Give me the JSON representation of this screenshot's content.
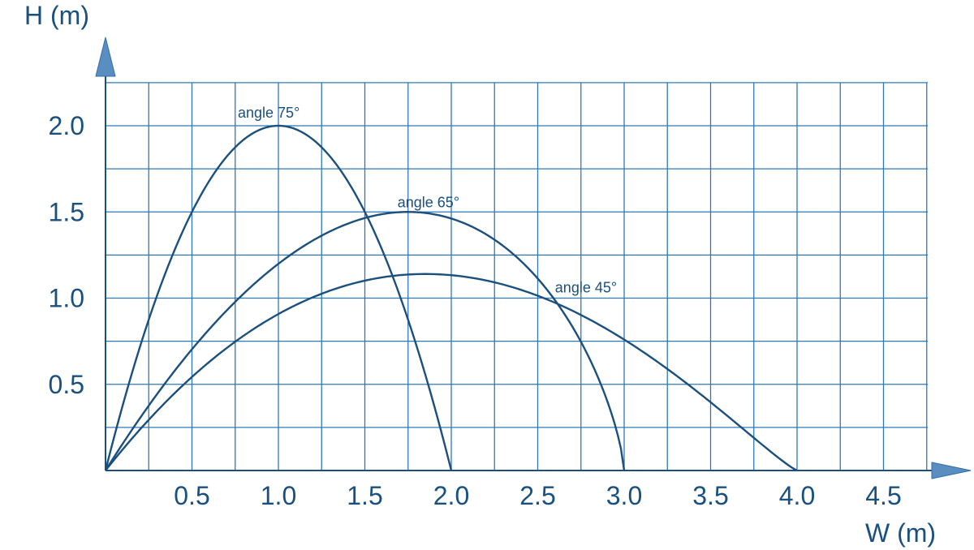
{
  "chart_data": {
    "type": "line",
    "xlabel": "W (m)",
    "ylabel": "H (m)",
    "xlim": [
      0,
      4.8
    ],
    "ylim": [
      0,
      2.25
    ],
    "x_ticks": [
      "0.5",
      "1.0",
      "1.5",
      "2.0",
      "2.5",
      "3.0",
      "3.5",
      "4.0",
      "4.5"
    ],
    "y_ticks": [
      "0.5",
      "1.0",
      "1.5",
      "2.0"
    ],
    "grid": true,
    "colors": {
      "line": "#1b4f7d",
      "grid": "#2f78b8",
      "axis": "#1b4f7d",
      "text": "#19507f",
      "arrow": "#5b8ec0"
    },
    "series": [
      {
        "name": "angle 75°",
        "range": 2.0,
        "peak_x": 1.0,
        "peak_y": 2.0
      },
      {
        "name": "angle 65°",
        "range": 3.0,
        "peak_x": 1.75,
        "peak_y": 1.5
      },
      {
        "name": "angle 45°",
        "range": 4.0,
        "peak_x": 1.85,
        "peak_y": 1.14
      }
    ]
  }
}
